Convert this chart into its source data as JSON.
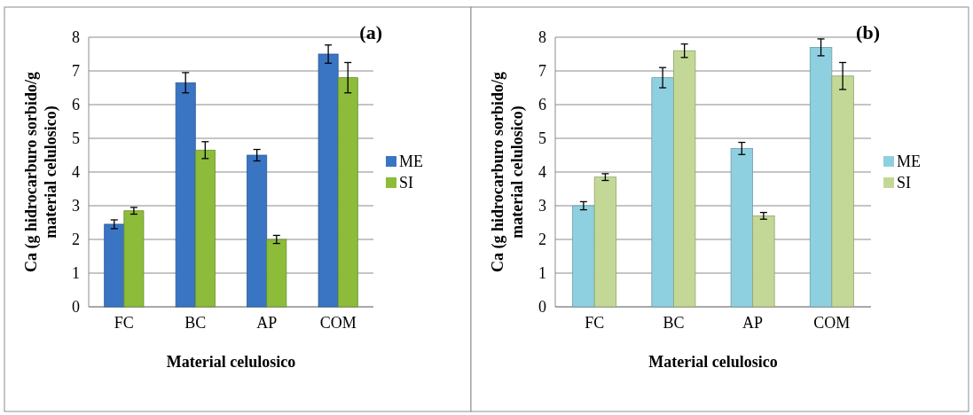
{
  "chart_data": [
    {
      "type": "bar",
      "title": "(a)",
      "xlabel": "Material celulosico",
      "ylabel": "Ca (g hidrocarburo sorbido/g material celulosico)",
      "categories": [
        "FC",
        "BC",
        "AP",
        "COM"
      ],
      "ylim": [
        0,
        8
      ],
      "yticks": [
        0,
        1,
        2,
        3,
        4,
        5,
        6,
        7,
        8
      ],
      "grid": "y",
      "legend": "right",
      "series": [
        {
          "name": "ME",
          "color": "#3a75c4",
          "values": [
            2.45,
            6.65,
            4.5,
            7.5
          ],
          "errors": [
            0.13,
            0.3,
            0.17,
            0.27
          ]
        },
        {
          "name": "SI",
          "color": "#8cbc3a",
          "values": [
            2.85,
            4.65,
            2.0,
            6.8
          ],
          "errors": [
            0.1,
            0.25,
            0.12,
            0.45
          ]
        }
      ]
    },
    {
      "type": "bar",
      "title": "(b)",
      "xlabel": "Material celulosico",
      "ylabel": "Ca (g hidrocarburo sorbido/g material celulosico)",
      "categories": [
        "FC",
        "BC",
        "AP",
        "COM"
      ],
      "ylim": [
        0,
        8
      ],
      "yticks": [
        0,
        1,
        2,
        3,
        4,
        5,
        6,
        7,
        8
      ],
      "grid": "y",
      "legend": "right",
      "series": [
        {
          "name": "ME",
          "color": "#8fd0e0",
          "values": [
            3.0,
            6.8,
            4.7,
            7.7
          ],
          "errors": [
            0.12,
            0.3,
            0.18,
            0.25
          ]
        },
        {
          "name": "SI",
          "color": "#c3d896",
          "values": [
            3.85,
            7.6,
            2.7,
            6.85
          ],
          "errors": [
            0.1,
            0.2,
            0.1,
            0.4
          ]
        }
      ]
    }
  ]
}
